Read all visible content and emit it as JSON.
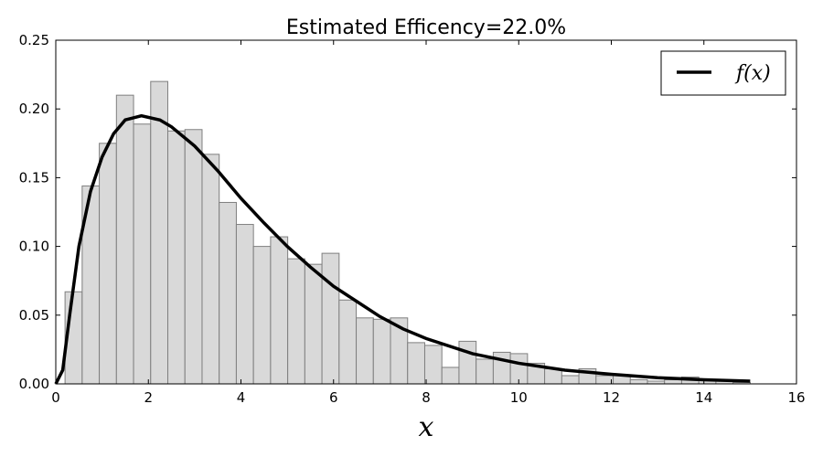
{
  "chart_data": {
    "type": "bar",
    "title": "Estimated Efficency=22.0%",
    "xlabel": "x",
    "ylabel": "",
    "xlim": [
      0,
      16
    ],
    "ylim": [
      0,
      0.25
    ],
    "xticks": [
      "0",
      "2",
      "4",
      "6",
      "8",
      "10",
      "12",
      "14",
      "16"
    ],
    "yticks": [
      "0.00",
      "0.05",
      "0.10",
      "0.15",
      "0.20",
      "0.25"
    ],
    "grid": false,
    "legend_position": "top-right",
    "colors": {
      "bar_fill": "#d9d9d9",
      "bar_edge": "#7f7f7f",
      "curve": "#000000"
    },
    "histogram": {
      "bin_start": 0.2,
      "bin_width": 0.37,
      "values": [
        0.067,
        0.144,
        0.175,
        0.21,
        0.189,
        0.22,
        0.184,
        0.185,
        0.167,
        0.132,
        0.116,
        0.1,
        0.107,
        0.091,
        0.087,
        0.095,
        0.061,
        0.048,
        0.047,
        0.048,
        0.03,
        0.028,
        0.012,
        0.031,
        0.018,
        0.023,
        0.022,
        0.015,
        0.011,
        0.006,
        0.011,
        0.006,
        0.006,
        0.003,
        0.002,
        0.003,
        0.005,
        0.003,
        0.002,
        0.001
      ]
    },
    "series": [
      {
        "name": "f(x)",
        "x": [
          0,
          0.15,
          0.3,
          0.5,
          0.75,
          1,
          1.25,
          1.5,
          1.85,
          2.25,
          2.5,
          3,
          3.5,
          4,
          4.5,
          5,
          5.5,
          6,
          6.5,
          7,
          7.5,
          8,
          9,
          10,
          11,
          12,
          13,
          14,
          15
        ],
        "y": [
          0,
          0.01,
          0.05,
          0.1,
          0.14,
          0.165,
          0.182,
          0.192,
          0.195,
          0.192,
          0.187,
          0.173,
          0.155,
          0.135,
          0.117,
          0.1,
          0.085,
          0.071,
          0.06,
          0.049,
          0.04,
          0.033,
          0.022,
          0.015,
          0.01,
          0.007,
          0.0045,
          0.003,
          0.002
        ]
      }
    ]
  }
}
